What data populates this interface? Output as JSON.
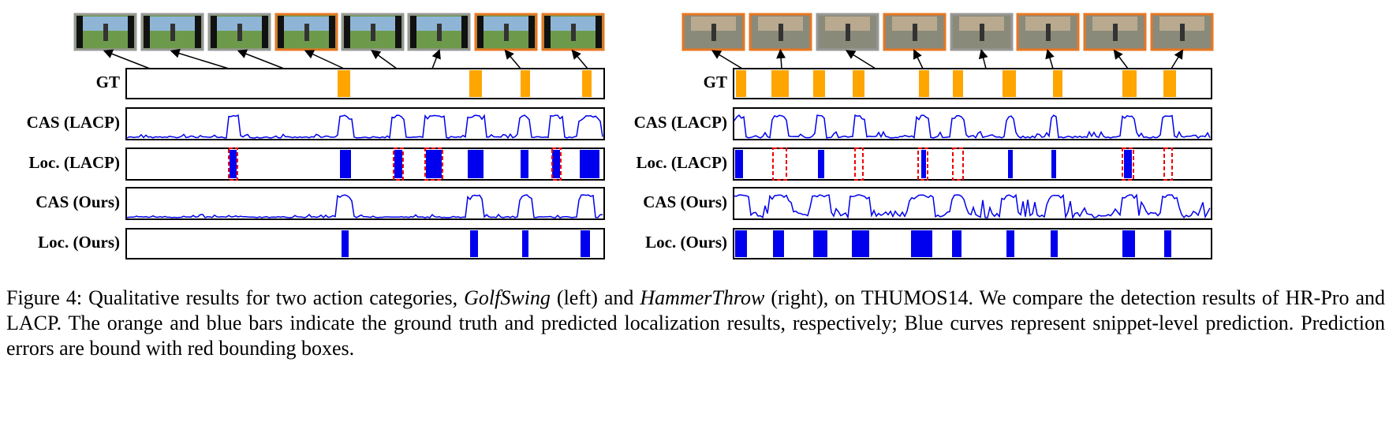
{
  "panels": [
    {
      "rows": [
        "GT",
        "CAS (LACP)",
        "Loc. (LACP)",
        "CAS (Ours)",
        "Loc. (Ours)"
      ]
    },
    {
      "rows": [
        "GT",
        "CAS (LACP)",
        "Loc. (LACP)",
        "CAS (Ours)",
        "Loc. (Ours)"
      ]
    }
  ],
  "caption": {
    "parts": [
      "Figure 4: Qualitative results for two action categories, ",
      "GolfSwing",
      " (left) and ",
      "HammerThrow",
      " (right), on THUMOS14. We compare the detection results of HR-Pro and LACP. The orange and blue bars indicate the ground truth and predicted localization results, respectively; Blue curves represent snippet-level prediction. Prediction errors are bound with red bounding boxes."
    ]
  }
}
